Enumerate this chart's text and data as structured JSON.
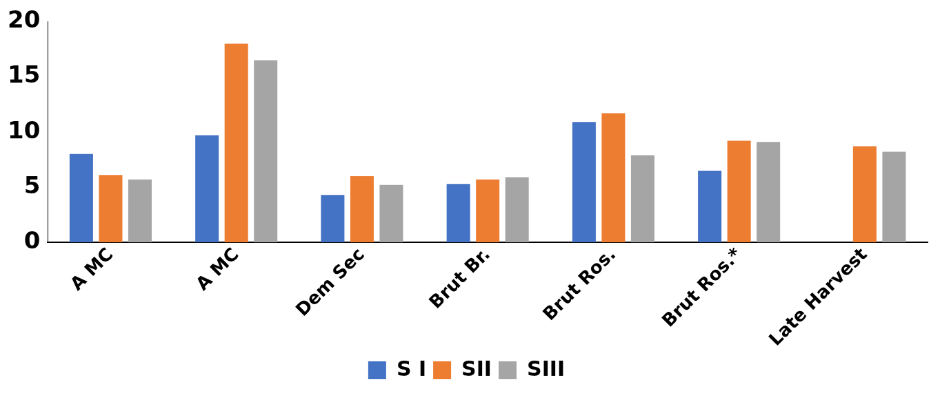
{
  "chart_data": {
    "type": "bar",
    "categories": [
      "A MC",
      "A MC",
      "Dem Sec",
      "Brut Br.",
      "Brut Ros.",
      "Brut Ros.*",
      "Late Harvest"
    ],
    "series": [
      {
        "name": "S I",
        "color": "#4472c4",
        "values": [
          8.0,
          9.7,
          4.3,
          5.3,
          10.9,
          6.5,
          null
        ]
      },
      {
        "name": "SII",
        "color": "#ed7d31",
        "values": [
          6.1,
          18.0,
          6.0,
          5.7,
          11.7,
          9.2,
          8.7
        ]
      },
      {
        "name": "SIII",
        "color": "#a5a5a5",
        "values": [
          5.7,
          16.5,
          5.2,
          5.9,
          7.9,
          9.1,
          8.2
        ]
      }
    ],
    "ylim": [
      0,
      20
    ],
    "yticks": [
      0,
      5,
      10,
      15,
      20
    ],
    "grid": false,
    "legend": "bottom"
  }
}
